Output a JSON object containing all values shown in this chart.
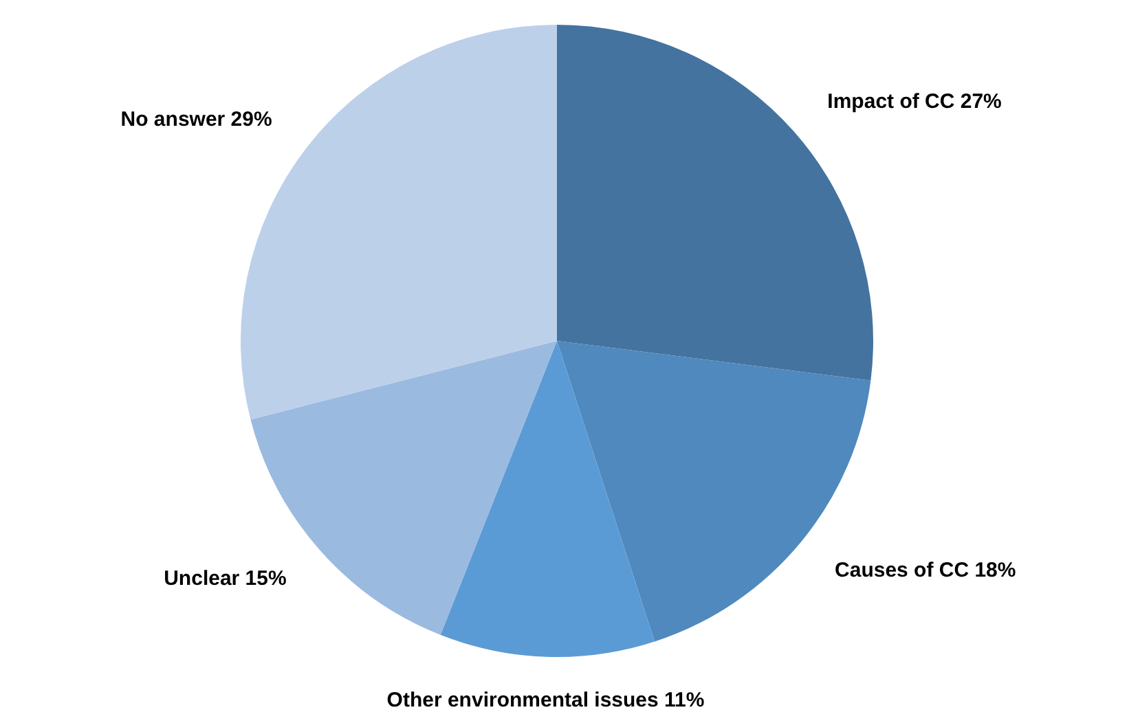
{
  "chart_data": {
    "type": "pie",
    "categories": [
      "Impact of CC",
      "Causes of CC",
      "Other environmental issues",
      "Unclear",
      "No answer"
    ],
    "values": [
      27,
      18,
      11,
      15,
      29
    ],
    "value_labels": [
      "27%",
      "18%",
      "11%",
      "15%",
      "29%"
    ],
    "colors": [
      "#44739f",
      "#4f89bd",
      "#5b9bd5",
      "#9bbae0",
      "#bdd0ea"
    ],
    "legend": false
  }
}
